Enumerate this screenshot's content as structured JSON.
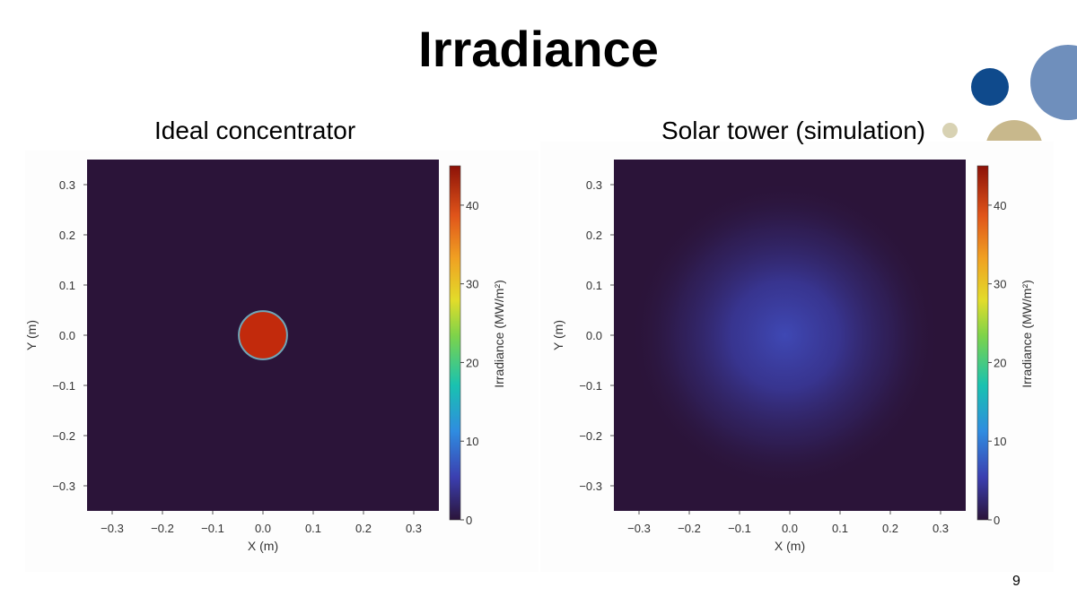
{
  "slide": {
    "title": "Irradiance",
    "page_number": "9"
  },
  "colors": {
    "background_dark": "#2b1439",
    "spot_red": "#c22a0c",
    "spot_edge": "#6fa6b8",
    "diffuse_center": "#3f48b4",
    "deco_navy": "#0f4a8c",
    "deco_blue": "#6f8fbc",
    "deco_tan": "#c8b88c"
  },
  "chart_data": [
    {
      "type": "heatmap",
      "title": "Ideal concentrator",
      "xlabel": "X (m)",
      "ylabel": "Y (m)",
      "xlim": [
        -0.35,
        0.35
      ],
      "ylim": [
        -0.35,
        0.35
      ],
      "x_ticks": [
        -0.3,
        -0.2,
        -0.1,
        0.0,
        0.1,
        0.2,
        0.3
      ],
      "x_tick_labels": [
        "−0.3",
        "−0.2",
        "−0.1",
        "0.0",
        "0.1",
        "0.2",
        "0.3"
      ],
      "y_ticks": [
        0.3,
        0.2,
        0.1,
        0.0,
        -0.1,
        -0.2,
        -0.3
      ],
      "y_tick_labels": [
        "0.3",
        "0.2",
        "0.1",
        "0.0",
        "−0.1",
        "−0.2",
        "−0.3"
      ],
      "colorbar": {
        "label": "Irradiance (MW/m²)",
        "range": [
          0,
          45
        ],
        "ticks": [
          0,
          10,
          20,
          30,
          40
        ],
        "tick_labels": [
          "0",
          "10",
          "20",
          "30",
          "40"
        ]
      },
      "field": {
        "shape": "uniform disk",
        "center": [
          0.0,
          0.0
        ],
        "radius_m": 0.048,
        "peak_value": 42,
        "background_value": 0
      }
    },
    {
      "type": "heatmap",
      "title": "Solar tower (simulation)",
      "xlabel": "X (m)",
      "ylabel": "Y (m)",
      "xlim": [
        -0.35,
        0.35
      ],
      "ylim": [
        -0.35,
        0.35
      ],
      "x_ticks": [
        -0.3,
        -0.2,
        -0.1,
        0.0,
        0.1,
        0.2,
        0.3
      ],
      "x_tick_labels": [
        "−0.3",
        "−0.2",
        "−0.1",
        "0.0",
        "0.1",
        "0.2",
        "0.3"
      ],
      "y_ticks": [
        0.3,
        0.2,
        0.1,
        0.0,
        -0.1,
        -0.2,
        -0.3
      ],
      "y_tick_labels": [
        "0.3",
        "0.2",
        "0.1",
        "0.0",
        "−0.1",
        "−0.2",
        "−0.3"
      ],
      "colorbar": {
        "label": "Irradiance (MW/m²)",
        "range": [
          0,
          45
        ],
        "ticks": [
          0,
          10,
          20,
          30,
          40
        ],
        "tick_labels": [
          "0",
          "10",
          "20",
          "30",
          "40"
        ]
      },
      "field": {
        "shape": "gaussian",
        "center": [
          -0.01,
          0.0
        ],
        "sigma_m": 0.14,
        "peak_value": 5,
        "background_value": 0
      }
    }
  ]
}
